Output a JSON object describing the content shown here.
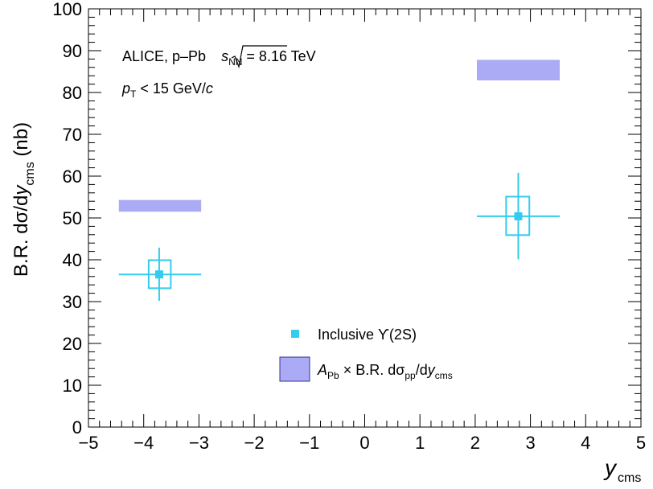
{
  "chart_data": {
    "type": "scatter",
    "xlabel": "y",
    "xlabel_sub": "cms",
    "ylabel_parts": [
      "B.R. dσ/d",
      "y",
      "cms",
      " (nb)"
    ],
    "xlim": [
      -5,
      5
    ],
    "ylim": [
      0,
      100
    ],
    "x_ticks": [
      -5,
      -4,
      -3,
      -2,
      -1,
      0,
      1,
      2,
      3,
      4,
      5
    ],
    "y_ticks": [
      0,
      10,
      20,
      30,
      40,
      50,
      60,
      70,
      80,
      90,
      100
    ],
    "x_tick_labels": [
      "−5",
      "−4",
      "−3",
      "−2",
      "−1",
      "0",
      "1",
      "2",
      "3",
      "4",
      "5"
    ],
    "y_tick_labels": [
      "0",
      "10",
      "20",
      "30",
      "40",
      "50",
      "60",
      "70",
      "80",
      "90",
      "100"
    ],
    "grid": false,
    "legend_position": "bottom-center",
    "annotations": {
      "line1_text": "ALICE, p–Pb ",
      "line1_sqrt_s": "s",
      "line1_sqrt_sub": "NN",
      "line1_energy": " = 8.16 TeV",
      "line2_p": "p",
      "line2_sub": "T",
      "line2_rest": " < 15 GeV/",
      "line2_c": "c"
    },
    "series": [
      {
        "name": "Inclusive ϒ(2S)",
        "color": "#33ccee",
        "points": [
          {
            "x": -3.72,
            "y": 36.5,
            "x_lo": -4.45,
            "x_hi": -2.96,
            "stat_lo": 30.2,
            "stat_hi": 42.9,
            "syst_x_lo": -3.91,
            "syst_x_hi": -3.51,
            "syst_lo": 33.2,
            "syst_hi": 39.9
          },
          {
            "x": 2.78,
            "y": 50.4,
            "x_lo": 2.03,
            "x_hi": 3.53,
            "stat_lo": 40.1,
            "stat_hi": 60.8,
            "syst_x_lo": 2.56,
            "syst_x_hi": 2.98,
            "syst_lo": 45.9,
            "syst_hi": 55.1
          }
        ]
      },
      {
        "name_A": "A",
        "name_A_sub": "Pb",
        "name_rest": " × B.R. dσ",
        "name_pp_sub": "pp",
        "name_slash": "/d",
        "name_y": "y",
        "name_cms_sub": "cms",
        "color": "#aaaaf5",
        "edge_color": "#333399",
        "bands": [
          {
            "x_lo": -4.45,
            "x_hi": -2.96,
            "y_lo": 51.5,
            "y_hi": 54.3
          },
          {
            "x_lo": 2.03,
            "x_hi": 3.53,
            "y_lo": 82.9,
            "y_hi": 87.8
          }
        ]
      }
    ]
  }
}
